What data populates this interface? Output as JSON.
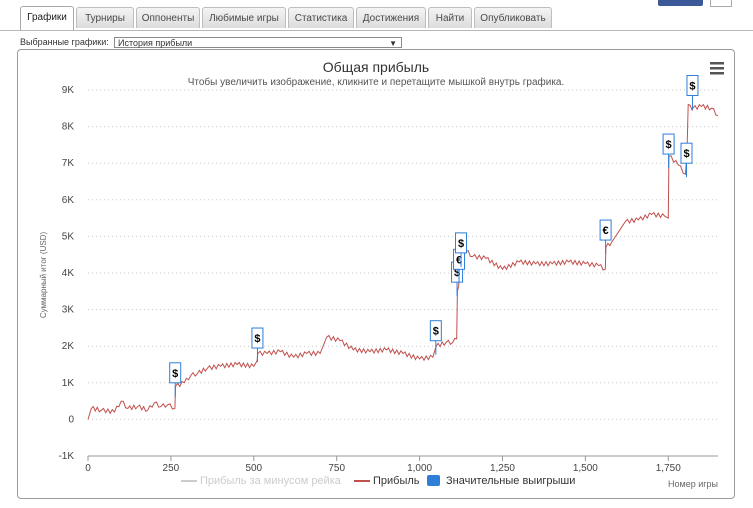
{
  "tabs": [
    {
      "label": "Графики",
      "active": true
    },
    {
      "label": "Турниры",
      "active": false
    },
    {
      "label": "Оппоненты",
      "active": false
    },
    {
      "label": "Любимые игры",
      "active": false
    },
    {
      "label": "Статистика",
      "active": false
    },
    {
      "label": "Достижения",
      "active": false
    },
    {
      "label": "Найти",
      "active": false
    },
    {
      "label": "Опубликовать",
      "active": false
    }
  ],
  "selector": {
    "label": "Выбранные графики:",
    "value": "История прибыли"
  },
  "chart_data": {
    "type": "line",
    "title": "Общая прибыль",
    "subtitle": "Чтобы увеличить изображение, кликните и перетащите мышкой внутрь графика.",
    "xlabel": "Номер игры",
    "ylabel": "Суммарный итог (USD)",
    "xlim": [
      0,
      1900
    ],
    "ylim": [
      -1000,
      9000
    ],
    "x_ticks": [
      "0",
      "250",
      "500",
      "750",
      "1,000",
      "1,250",
      "1,500",
      "1,750"
    ],
    "y_ticks": [
      "-1K",
      "0",
      "1K",
      "2K",
      "3K",
      "4K",
      "5K",
      "6K",
      "7K",
      "8K",
      "9K"
    ],
    "grid": true,
    "legend_position": "bottom",
    "series": [
      {
        "name": "Прибыль за минусом рейка",
        "color": "#cccccc",
        "hidden": true,
        "values": []
      },
      {
        "name": "Прибыль",
        "color": "#c0504d",
        "x": [
          0,
          10,
          40,
          80,
          100,
          120,
          150,
          180,
          200,
          220,
          240,
          262,
          264,
          290,
          310,
          330,
          360,
          400,
          450,
          500,
          510,
          512,
          540,
          580,
          620,
          660,
          700,
          720,
          760,
          800,
          850,
          900,
          950,
          1000,
          1040,
          1050,
          1080,
          1100,
          1112,
          1114,
          1118,
          1120,
          1124,
          1126,
          1140,
          1160,
          1200,
          1250,
          1300,
          1350,
          1400,
          1450,
          1500,
          1540,
          1560,
          1562,
          1580,
          1620,
          1660,
          1700,
          1740,
          1750,
          1752,
          1780,
          1802,
          1804,
          1806,
          1810,
          1822,
          1824,
          1850,
          1880,
          1900
        ],
        "values": [
          0,
          300,
          250,
          200,
          500,
          300,
          350,
          250,
          450,
          350,
          400,
          300,
          900,
          1000,
          1200,
          1250,
          1400,
          1450,
          1500,
          1450,
          1600,
          1800,
          1800,
          1850,
          1700,
          1800,
          1800,
          2250,
          2150,
          1900,
          1850,
          1900,
          1800,
          1650,
          1700,
          2000,
          2100,
          2100,
          2200,
          3500,
          3650,
          4000,
          4150,
          4550,
          4600,
          4450,
          4400,
          4100,
          4300,
          4250,
          4250,
          4300,
          4250,
          4200,
          4100,
          4700,
          4850,
          5400,
          5450,
          5600,
          5550,
          5500,
          7200,
          6950,
          6700,
          7000,
          7100,
          8600,
          8450,
          8500,
          8550,
          8500,
          8300
        ]
      }
    ],
    "markers": [
      {
        "x": 263,
        "y": 1000,
        "symbol": "$"
      },
      {
        "x": 511,
        "y": 1950,
        "symbol": "$"
      },
      {
        "x": 1049,
        "y": 2150,
        "symbol": "$"
      },
      {
        "x": 1113,
        "y": 3750,
        "symbol": "$"
      },
      {
        "x": 1119,
        "y": 4100,
        "symbol": "€"
      },
      {
        "x": 1125,
        "y": 4550,
        "symbol": "$"
      },
      {
        "x": 1561,
        "y": 4900,
        "symbol": "€"
      },
      {
        "x": 1751,
        "y": 7250,
        "symbol": "$"
      },
      {
        "x": 1805,
        "y": 7000,
        "symbol": "$"
      },
      {
        "x": 1823,
        "y": 8850,
        "symbol": "$"
      }
    ],
    "flags_legend": {
      "name": "Значительные выигрыши",
      "color": "#2f7ed8"
    }
  }
}
